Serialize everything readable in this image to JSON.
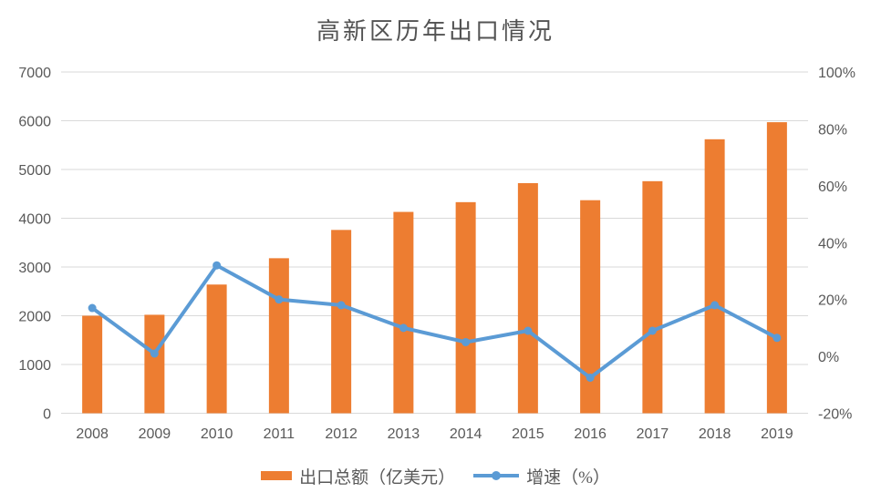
{
  "title": "高新区历年出口情况",
  "colors": {
    "bar": "#ED7D31",
    "line": "#5B9BD5",
    "grid": "#D9D9D9",
    "text": "#595959"
  },
  "legend": {
    "bar_label": "出口总额（亿美元）",
    "line_label": "增速（%）"
  },
  "chart_data": {
    "type": "bar+line combo",
    "title": "高新区历年出口情况",
    "categories": [
      "2008",
      "2009",
      "2010",
      "2011",
      "2012",
      "2013",
      "2014",
      "2015",
      "2016",
      "2017",
      "2018",
      "2019"
    ],
    "series": [
      {
        "name": "出口总额（亿美元）",
        "type": "bar",
        "axis": "left",
        "values": [
          2000,
          2020,
          2640,
          3180,
          3760,
          4130,
          4330,
          4720,
          4370,
          4760,
          5620,
          5970
        ]
      },
      {
        "name": "增速（%）",
        "type": "line",
        "axis": "right",
        "values": [
          17,
          1,
          32,
          20,
          18,
          10,
          5,
          9,
          -7.5,
          9,
          18,
          6.5
        ]
      }
    ],
    "left_axis": {
      "min": 0,
      "max": 7000,
      "step": 1000,
      "tick_labels": [
        "0",
        "1000",
        "2000",
        "3000",
        "4000",
        "5000",
        "6000",
        "7000"
      ]
    },
    "right_axis": {
      "min": -20,
      "max": 100,
      "step": 20,
      "tick_labels": [
        "-20%",
        "0%",
        "20%",
        "40%",
        "60%",
        "80%",
        "100%"
      ]
    },
    "grid": true,
    "legend_position": "bottom"
  }
}
